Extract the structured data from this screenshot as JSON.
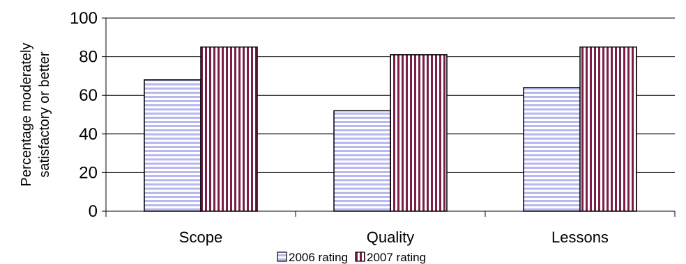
{
  "chart_data": {
    "type": "bar",
    "categories": [
      "Scope",
      "Quality",
      "Lessons"
    ],
    "series": [
      {
        "name": "2006 rating",
        "values": [
          68,
          52,
          64
        ]
      },
      {
        "name": "2007 rating",
        "values": [
          85,
          81,
          85
        ]
      }
    ],
    "ylabel_lines": [
      "Percentage moderately",
      "satisfactory or better"
    ],
    "ylim": [
      0,
      100
    ],
    "yticks": [
      0,
      20,
      40,
      60,
      80,
      100
    ],
    "grid": true,
    "legend_position": "bottom"
  },
  "colors": {
    "series_2006_fill": "#b8b8f0",
    "series_2006_stripe": "#ffffff",
    "series_2007_fill": "#7a2048",
    "series_2007_stripe": "#ffffff",
    "gridline": "#000000"
  }
}
